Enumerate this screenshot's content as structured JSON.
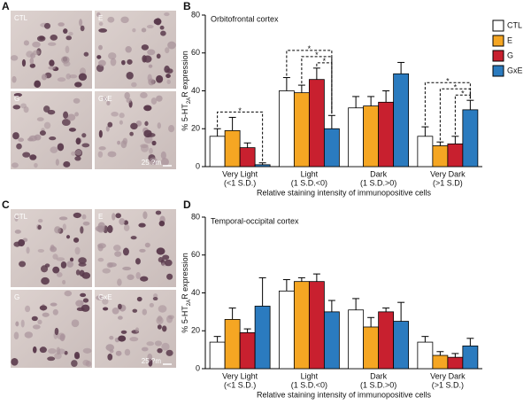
{
  "panels": {
    "letters": [
      "A",
      "B",
      "C",
      "D"
    ],
    "micrographs": [
      {
        "tiles": [
          "CTL",
          "E",
          "G",
          "GxE"
        ],
        "scale": "25 ?m"
      },
      {
        "tiles": [
          "CTL",
          "E",
          "G",
          "GxE"
        ],
        "scale": "25 ?m"
      }
    ]
  },
  "chart_data": [
    {
      "type": "bar",
      "subtitle": "Orbitofrontal cortex",
      "y_label": [
        "% 5-HT",
        "2A",
        "R expression"
      ],
      "x_label": "Relative staining intensity of immunopositive cells",
      "categories": [
        [
          "Very Light",
          "(<1 S.D.)"
        ],
        [
          "Light",
          "(1 S.D.<0)"
        ],
        [
          "Dark",
          "(1 S.D.>0)"
        ],
        [
          "Very Dark",
          "(>1 S.D)"
        ]
      ],
      "series": [
        {
          "name": "CTL",
          "color": "#ffffff",
          "values": [
            16,
            40,
            31,
            16
          ],
          "errors": [
            4,
            7,
            6,
            5
          ]
        },
        {
          "name": "E",
          "color": "#f5a623",
          "values": [
            19,
            39,
            32,
            11
          ],
          "errors": [
            7,
            4,
            5,
            2
          ]
        },
        {
          "name": "G",
          "color": "#c8202f",
          "values": [
            10,
            46,
            34,
            12
          ],
          "errors": [
            2.5,
            6,
            6,
            4
          ]
        },
        {
          "name": "GxE",
          "color": "#2b7bbf",
          "values": [
            1,
            20,
            49,
            30
          ],
          "errors": [
            1,
            7,
            6,
            5
          ]
        }
      ],
      "significance": [
        {
          "label": "*",
          "category": 0,
          "pair": [
            0,
            3
          ]
        },
        {
          "label": "*",
          "category": 1,
          "pair": [
            0,
            3
          ]
        },
        {
          "label": "*",
          "category": 1,
          "pair": [
            1,
            3
          ]
        },
        {
          "label": "*",
          "category": 1,
          "pair": [
            2,
            3
          ]
        },
        {
          "label": "*",
          "category": 3,
          "pair": [
            0,
            3
          ]
        },
        {
          "label": "*",
          "category": 3,
          "pair": [
            1,
            3
          ]
        },
        {
          "label": "*",
          "category": 3,
          "pair": [
            2,
            3
          ]
        }
      ],
      "ylim": [
        0,
        80
      ],
      "yticks": [
        0,
        20,
        40,
        60,
        80
      ],
      "legend": "top-right"
    },
    {
      "type": "bar",
      "subtitle": "Temporal-occipital cortex",
      "y_label": [
        "% 5-HT",
        "2A",
        "R expression"
      ],
      "x_label": "Relative staining intensity of immunopositive cells",
      "categories": [
        [
          "Very Light",
          "(<1 S.D.)"
        ],
        [
          "Light",
          "(1 S.D.<0)"
        ],
        [
          "Dark",
          "(1 S.D.>0)"
        ],
        [
          "Very Dark",
          "(>1 S.D.)"
        ]
      ],
      "series": [
        {
          "name": "CTL",
          "color": "#ffffff",
          "values": [
            14,
            41,
            31,
            14
          ],
          "errors": [
            3,
            6,
            6,
            3
          ]
        },
        {
          "name": "E",
          "color": "#f5a623",
          "values": [
            26,
            46,
            22,
            7
          ],
          "errors": [
            6,
            2,
            5,
            2
          ]
        },
        {
          "name": "G",
          "color": "#c8202f",
          "values": [
            19,
            46,
            30,
            6
          ],
          "errors": [
            2,
            4,
            2,
            2
          ]
        },
        {
          "name": "GxE",
          "color": "#2b7bbf",
          "values": [
            33,
            30,
            25,
            12
          ],
          "errors": [
            15,
            6,
            10,
            4
          ]
        }
      ],
      "ylim": [
        0,
        80
      ],
      "yticks": [
        0,
        20,
        40,
        60,
        80
      ]
    }
  ]
}
